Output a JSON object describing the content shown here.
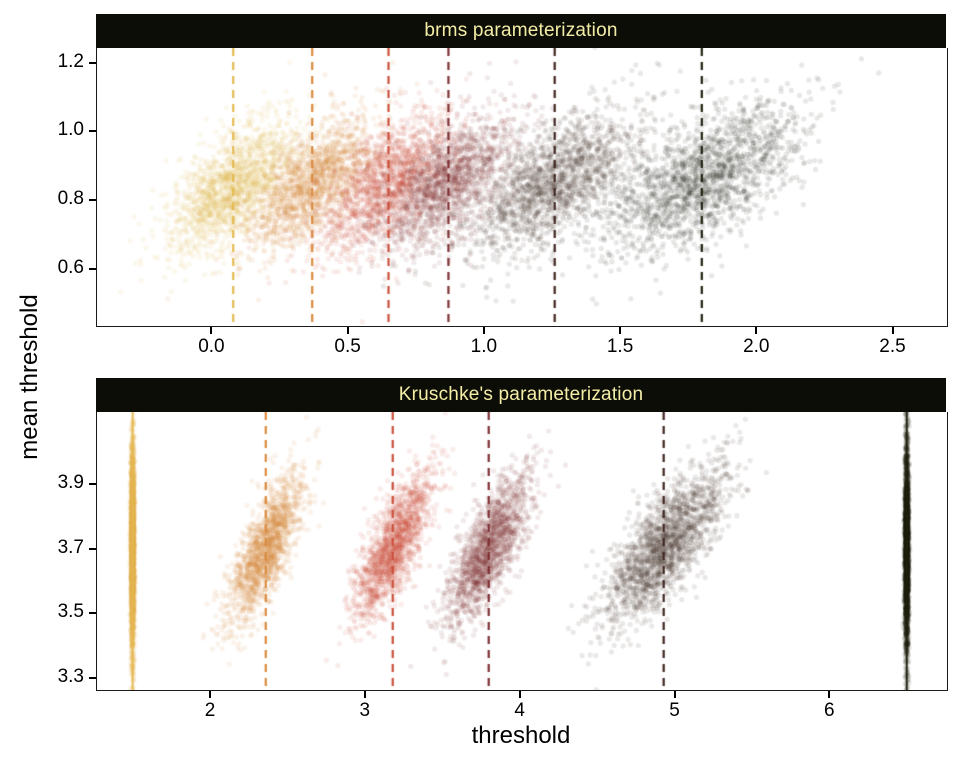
{
  "figure": {
    "xlabel": "threshold",
    "ylabel": "mean threshold",
    "strip_bg": "#0d0d07",
    "strip_text_color": "#F3EDA6"
  },
  "chart_data": [
    {
      "type": "scatter",
      "title": "brms parameterization",
      "seed": 7,
      "xlim": [
        -0.42,
        2.7
      ],
      "ylim": [
        0.43,
        1.24
      ],
      "xticks": [
        0.0,
        0.5,
        1.0,
        1.5,
        2.0,
        2.5
      ],
      "xtick_labels": [
        "0.0",
        "0.5",
        "1.0",
        "1.5",
        "2.0",
        "2.5"
      ],
      "yticks": [
        0.6,
        0.8,
        1.0,
        1.2
      ],
      "ytick_labels": [
        "0.6",
        "0.8",
        "1.0",
        "1.2"
      ],
      "legend": "none",
      "grid": "off",
      "clusters": [
        {
          "name": "threshold-1",
          "color": "#E5B94F",
          "x": 0.08,
          "y": 0.84,
          "sdx": 0.115,
          "sdy": 0.095,
          "rho": 0.62,
          "n": 1600,
          "alpha": 0.1,
          "vline": 0.08,
          "vline_style": "dashed"
        },
        {
          "name": "threshold-2",
          "color": "#DB8A3E",
          "x": 0.37,
          "y": 0.845,
          "sdx": 0.115,
          "sdy": 0.095,
          "rho": 0.62,
          "n": 1600,
          "alpha": 0.1,
          "vline": 0.37,
          "vline_style": "dashed"
        },
        {
          "name": "threshold-3",
          "color": "#CC4F3B",
          "x": 0.65,
          "y": 0.85,
          "sdx": 0.12,
          "sdy": 0.1,
          "rho": 0.63,
          "n": 1600,
          "alpha": 0.1,
          "vline": 0.65,
          "vline_style": "dashed"
        },
        {
          "name": "threshold-4",
          "color": "#7E2F33",
          "x": 0.87,
          "y": 0.85,
          "sdx": 0.125,
          "sdy": 0.1,
          "rho": 0.63,
          "n": 1600,
          "alpha": 0.1,
          "vline": 0.87,
          "vline_style": "dashed"
        },
        {
          "name": "threshold-5",
          "color": "#3E241E",
          "x": 1.26,
          "y": 0.85,
          "sdx": 0.155,
          "sdy": 0.105,
          "rho": 0.63,
          "n": 1700,
          "alpha": 0.1,
          "vline": 1.26,
          "vline_style": "dashed"
        },
        {
          "name": "threshold-6",
          "color": "#20200F",
          "x": 1.8,
          "y": 0.86,
          "sdx": 0.185,
          "sdy": 0.11,
          "rho": 0.63,
          "n": 1800,
          "alpha": 0.1,
          "vline": 1.8,
          "vline_style": "dashed"
        }
      ]
    },
    {
      "type": "scatter",
      "title": "Kruschke's parameterization",
      "seed": 13,
      "xlim": [
        1.27,
        6.76
      ],
      "ylim": [
        3.26,
        4.12
      ],
      "xticks": [
        2,
        3,
        4,
        5,
        6
      ],
      "xtick_labels": [
        "2",
        "3",
        "4",
        "5",
        "6"
      ],
      "yticks": [
        3.3,
        3.5,
        3.7,
        3.9
      ],
      "ytick_labels": [
        "3.3",
        "3.5",
        "3.7",
        "3.9"
      ],
      "legend": "none",
      "grid": "off",
      "clusters": [
        {
          "name": "threshold-1-pinned",
          "color": "#E5B94F",
          "x": 1.5,
          "y": 3.7,
          "sdx": 0.006,
          "sdy": 0.165,
          "rho": 0,
          "n": 2400,
          "alpha": 0.12,
          "vline": 1.5,
          "vline_style": "solid"
        },
        {
          "name": "threshold-2",
          "color": "#DB8A3E",
          "x": 2.36,
          "y": 3.7,
          "sdx": 0.125,
          "sdy": 0.115,
          "rho": 0.75,
          "n": 1600,
          "alpha": 0.1,
          "vline": 2.36,
          "vline_style": "dashed"
        },
        {
          "name": "threshold-3",
          "color": "#CC4F3B",
          "x": 3.18,
          "y": 3.7,
          "sdx": 0.13,
          "sdy": 0.115,
          "rho": 0.75,
          "n": 1600,
          "alpha": 0.1,
          "vline": 3.18,
          "vline_style": "dashed"
        },
        {
          "name": "threshold-4",
          "color": "#7E2F33",
          "x": 3.8,
          "y": 3.7,
          "sdx": 0.135,
          "sdy": 0.115,
          "rho": 0.75,
          "n": 1600,
          "alpha": 0.1,
          "vline": 3.8,
          "vline_style": "dashed"
        },
        {
          "name": "threshold-5",
          "color": "#3E241E",
          "x": 4.93,
          "y": 3.7,
          "sdx": 0.2,
          "sdy": 0.12,
          "rho": 0.75,
          "n": 1800,
          "alpha": 0.1,
          "vline": 4.93,
          "vline_style": "dashed"
        },
        {
          "name": "threshold-6-pinned",
          "color": "#20200F",
          "x": 6.5,
          "y": 3.7,
          "sdx": 0.006,
          "sdy": 0.165,
          "rho": 0,
          "n": 2400,
          "alpha": 0.12,
          "vline": 6.5,
          "vline_style": "solid"
        }
      ]
    }
  ]
}
